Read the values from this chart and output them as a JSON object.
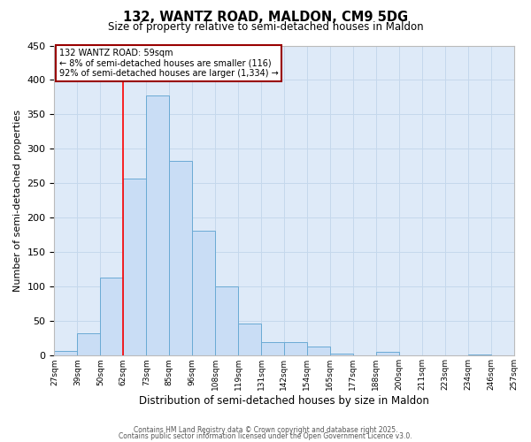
{
  "title": "132, WANTZ ROAD, MALDON, CM9 5DG",
  "subtitle": "Size of property relative to semi-detached houses in Maldon",
  "xlabel": "Distribution of semi-detached houses by size in Maldon",
  "ylabel": "Number of semi-detached properties",
  "bin_labels": [
    "27sqm",
    "39sqm",
    "50sqm",
    "62sqm",
    "73sqm",
    "85sqm",
    "96sqm",
    "108sqm",
    "119sqm",
    "131sqm",
    "142sqm",
    "154sqm",
    "165sqm",
    "177sqm",
    "188sqm",
    "200sqm",
    "211sqm",
    "223sqm",
    "234sqm",
    "246sqm",
    "257sqm"
  ],
  "counts": [
    7,
    32,
    113,
    257,
    378,
    282,
    181,
    100,
    47,
    20,
    20,
    13,
    3,
    0,
    6,
    0,
    0,
    0,
    2,
    0
  ],
  "bar_color": "#c9ddf5",
  "bar_edge_color": "#6aaad4",
  "grid_color": "#c5d8ec",
  "bg_color": "#deeaf8",
  "marker_bin_index": 3,
  "marker_label": "132 WANTZ ROAD: 59sqm",
  "annotation_line1": "← 8% of semi-detached houses are smaller (116)",
  "annotation_line2": "92% of semi-detached houses are larger (1,334) →",
  "ylim": [
    0,
    450
  ],
  "yticks": [
    0,
    50,
    100,
    150,
    200,
    250,
    300,
    350,
    400,
    450
  ],
  "footer1": "Contains HM Land Registry data © Crown copyright and database right 2025.",
  "footer2": "Contains public sector information licensed under the Open Government Licence v3.0."
}
